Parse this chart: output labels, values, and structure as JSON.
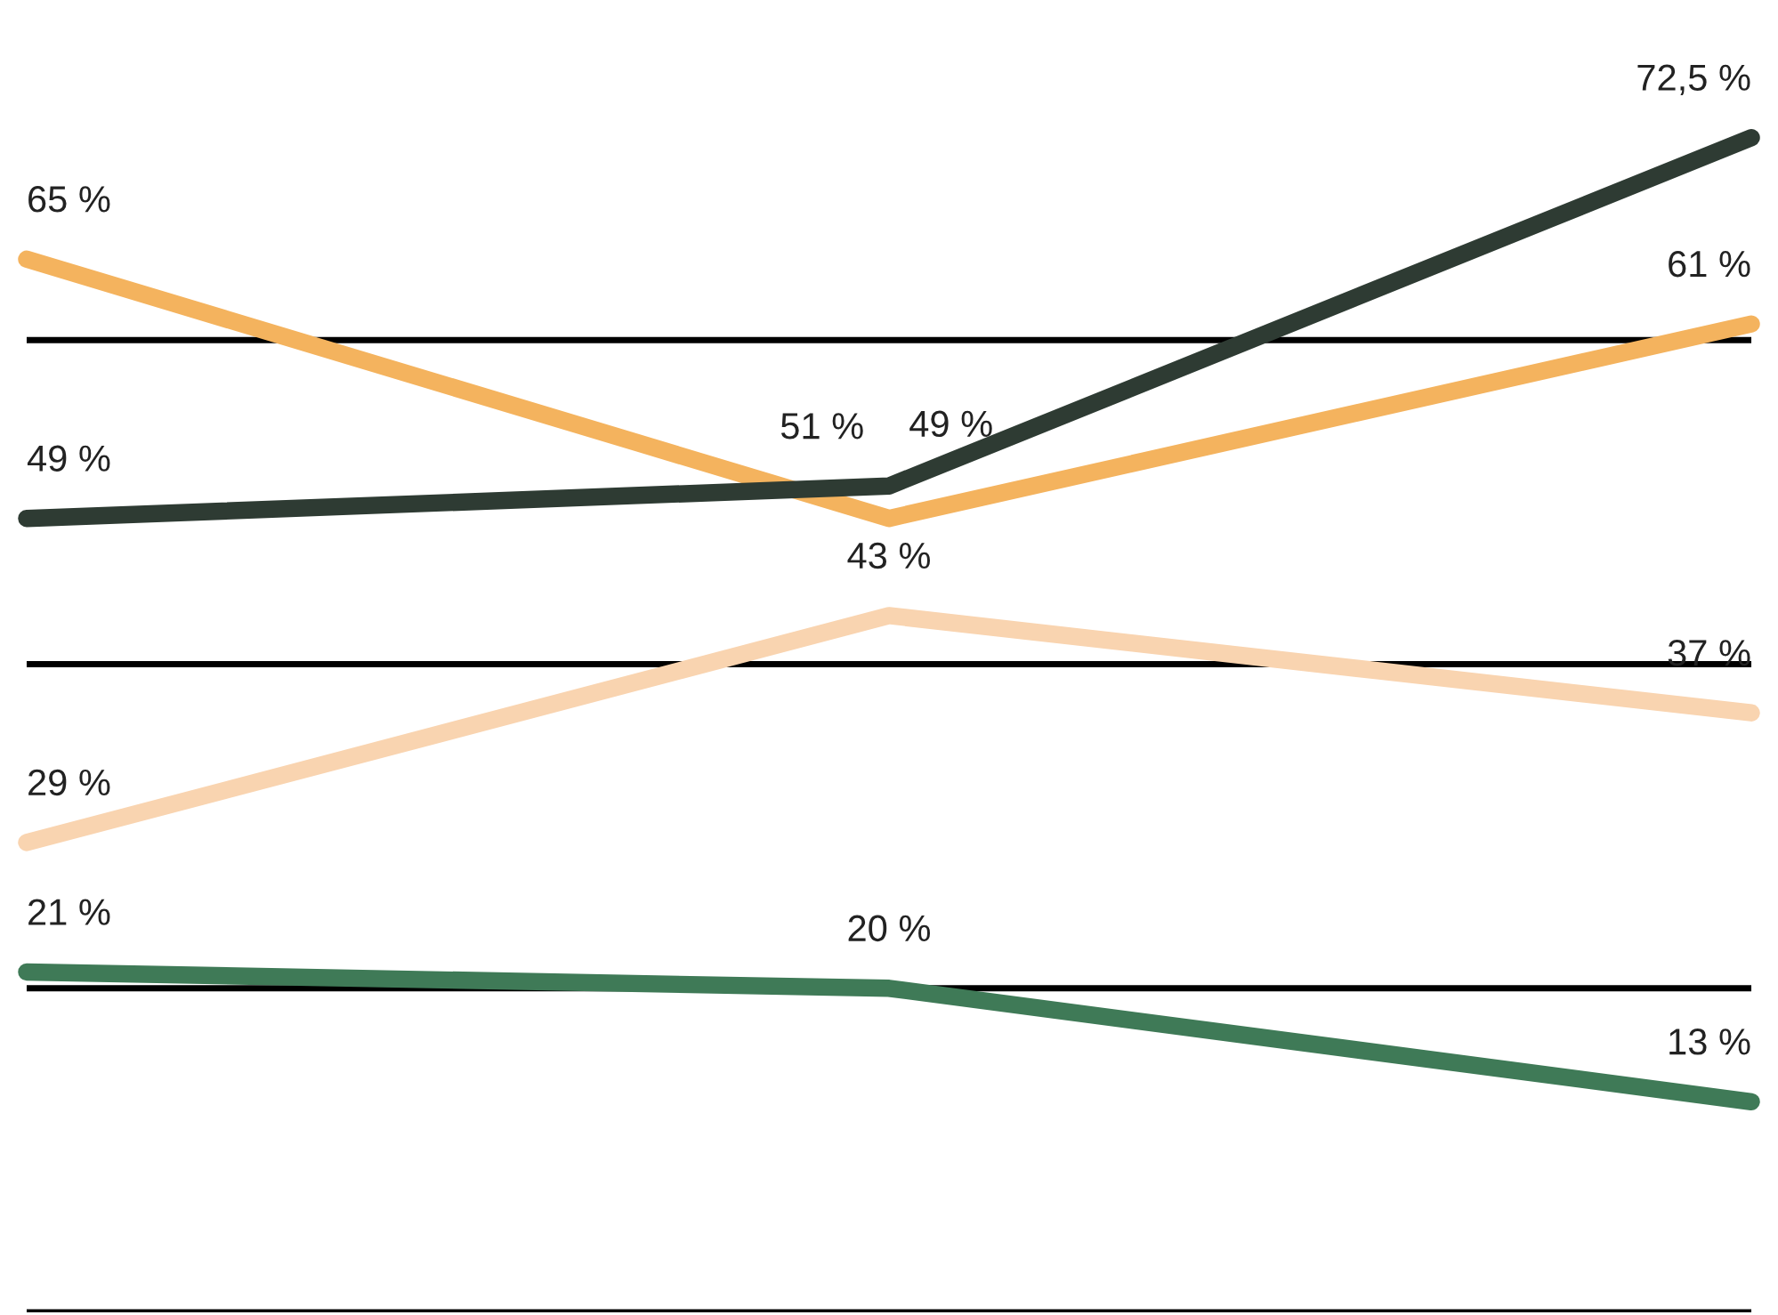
{
  "chart_data": {
    "type": "line",
    "categories": [
      null,
      null,
      null
    ],
    "series": [
      {
        "color": "#2e3b33",
        "values": [
          49,
          51,
          72.5
        ],
        "value_labels": [
          "49 %",
          "51 %",
          "72,5 %"
        ]
      },
      {
        "color": "#f4b35e",
        "values": [
          65,
          49,
          61
        ],
        "value_labels": [
          "65 %",
          "49 %",
          "61 %"
        ]
      },
      {
        "color": "#f9d4b0",
        "values": [
          29,
          43,
          37
        ],
        "value_labels": [
          "29 %",
          "43 %",
          "37 %"
        ]
      },
      {
        "color": "#3f7a57",
        "values": [
          21,
          20,
          13
        ],
        "value_labels": [
          "21 %",
          "20 %",
          "13 %"
        ]
      }
    ],
    "yticks": [
      {
        "value": 0,
        "label": null
      },
      {
        "value": 20,
        "label": null
      },
      {
        "value": 40,
        "label": null
      },
      {
        "value": 60,
        "label": null
      }
    ],
    "grid": "y",
    "legend": false,
    "marker": "none",
    "line_style": "solid"
  }
}
